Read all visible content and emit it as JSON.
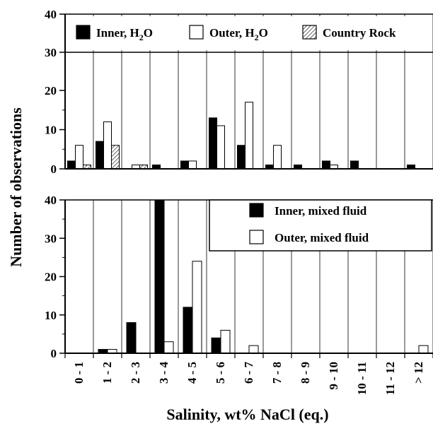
{
  "figure": {
    "ylabel": "Number of observations",
    "xlabel": "Salinity, wt% NaCl (eq.)",
    "categories": [
      "0 - 1",
      "1 - 2",
      "2 - 3",
      "3 - 4",
      "4 - 5",
      "5 - 6",
      "6 - 7",
      "7 - 8",
      "8 - 9",
      "9 - 10",
      "10 - 11",
      "11 - 12",
      "> 12"
    ]
  },
  "chart_data": [
    {
      "type": "bar",
      "panel": "top",
      "categories": [
        "0 - 1",
        "1 - 2",
        "2 - 3",
        "3 - 4",
        "4 - 5",
        "5 - 6",
        "6 - 7",
        "7 - 8",
        "8 - 9",
        "9 - 10",
        "10 - 11",
        "11 - 12",
        "> 12"
      ],
      "ylim": [
        0,
        40
      ],
      "yticks": [
        0,
        10,
        20,
        30,
        40
      ],
      "axis_break_above": 20,
      "grid": "vertical",
      "legend_position": "top",
      "series": [
        {
          "name": "Inner, H",
          "name_sub": "2",
          "name_tail": "O",
          "fill": "#000000",
          "pattern": "solid",
          "values": [
            2,
            7,
            0,
            1,
            2,
            13,
            6,
            1,
            1,
            2,
            2,
            0,
            1
          ]
        },
        {
          "name": "Outer, H",
          "name_sub": "2",
          "name_tail": "O",
          "fill": "#ffffff",
          "pattern": "open",
          "values": [
            6,
            12,
            1,
            0,
            2,
            11,
            17,
            6,
            0,
            1,
            0,
            0,
            0
          ]
        },
        {
          "name": "Country Rock",
          "fill": "#ffffff",
          "pattern": "hatched",
          "values": [
            1,
            6,
            1,
            0,
            0,
            0,
            0,
            0,
            0,
            0,
            0,
            0,
            0
          ]
        }
      ]
    },
    {
      "type": "bar",
      "panel": "bottom",
      "categories": [
        "0 - 1",
        "1 - 2",
        "2 - 3",
        "3 - 4",
        "4 - 5",
        "5 - 6",
        "6 - 7",
        "7 - 8",
        "8 - 9",
        "9 - 10",
        "10 - 11",
        "11 - 12",
        "> 12"
      ],
      "ylim": [
        0,
        40
      ],
      "yticks": [
        0,
        10,
        20,
        30,
        40
      ],
      "grid": "vertical",
      "legend_position": "top-right",
      "series": [
        {
          "name": "Inner, mixed fluid",
          "fill": "#000000",
          "pattern": "solid",
          "values": [
            0,
            1,
            8,
            40,
            12,
            4,
            0,
            0,
            0,
            0,
            0,
            0,
            0
          ]
        },
        {
          "name": "Outer, mixed fluid",
          "fill": "#ffffff",
          "pattern": "open",
          "values": [
            0,
            1,
            0,
            3,
            24,
            6,
            2,
            0,
            0,
            0,
            0,
            0,
            2
          ]
        }
      ]
    }
  ]
}
